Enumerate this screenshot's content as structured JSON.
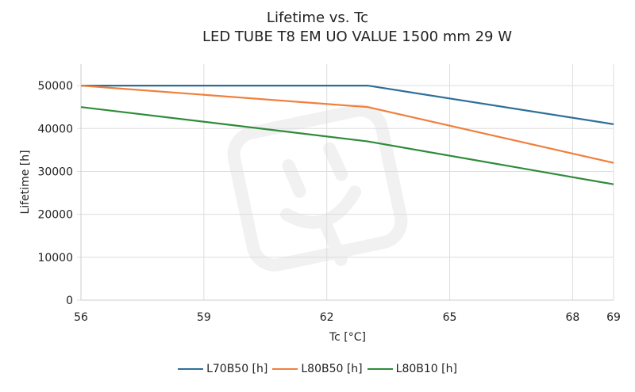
{
  "chart_data": {
    "type": "line",
    "title": "Lifetime vs. Tc",
    "subtitle": "LED TUBE T8 EM UO VALUE 1500 mm 29 W",
    "xlabel": "Tc [°C]",
    "ylabel": "Lifetime [h]",
    "xlim": [
      56,
      69
    ],
    "ylim": [
      0,
      55000
    ],
    "xticks": [
      56,
      59,
      62,
      65,
      68,
      69
    ],
    "yticks": [
      0,
      10000,
      20000,
      30000,
      40000,
      50000
    ],
    "grid": true,
    "legend_position": "bottom",
    "series": [
      {
        "name": "L70B50 [h]",
        "color": "#2e6f98",
        "x": [
          56,
          63,
          69
        ],
        "values": [
          50000,
          50000,
          41000
        ]
      },
      {
        "name": "L80B50 [h]",
        "color": "#f07f3c",
        "x": [
          56,
          63,
          69
        ],
        "values": [
          50000,
          45000,
          32000
        ]
      },
      {
        "name": "L80B10 [h]",
        "color": "#2e8b3a",
        "x": [
          56,
          63,
          69
        ],
        "values": [
          45000,
          37000,
          27000
        ]
      }
    ]
  }
}
